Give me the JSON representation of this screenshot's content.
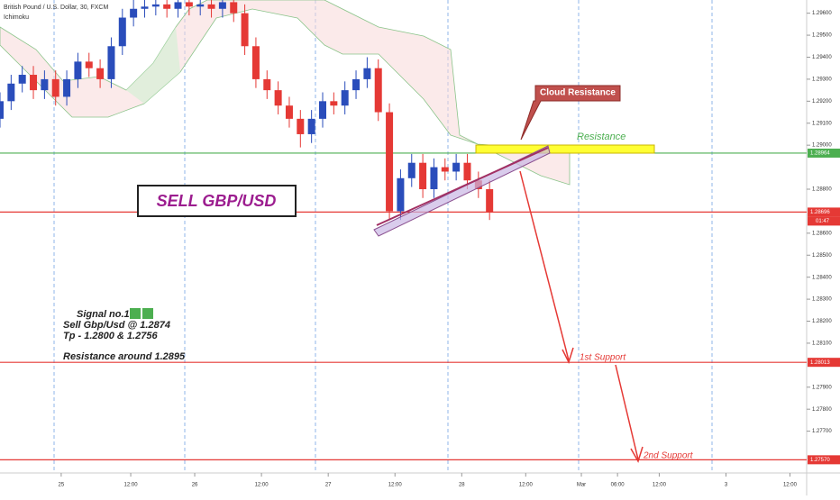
{
  "chart_data": {
    "type": "candlestick",
    "title": "British Pound / U.S. Dollar, 30, FXCM",
    "indicator": "Ichimoku",
    "up_color": "#2a4dbb",
    "down_color": "#e53935",
    "x": [
      0,
      4,
      8,
      12,
      16,
      20,
      24,
      28,
      32,
      36,
      40,
      44,
      48,
      52,
      56,
      60,
      64,
      68,
      72,
      76,
      80,
      84,
      88,
      92,
      96,
      100,
      104,
      108,
      112,
      116,
      120,
      124,
      128,
      132,
      136,
      140,
      144,
      148,
      152,
      156,
      160,
      164,
      168,
      172,
      176
    ],
    "open": [
      1.2912,
      1.292,
      1.2928,
      1.2932,
      1.2925,
      1.293,
      1.2922,
      1.293,
      1.2938,
      1.2935,
      1.293,
      1.2945,
      1.2958,
      1.2962,
      1.2963,
      1.2964,
      1.2962,
      1.2965,
      1.2963,
      1.2964,
      1.2962,
      1.2965,
      1.296,
      1.2945,
      1.293,
      1.2925,
      1.2918,
      1.2912,
      1.2905,
      1.2912,
      1.292,
      1.2918,
      1.2925,
      1.293,
      1.2935,
      1.2915,
      1.287,
      1.2885,
      1.2892,
      1.288,
      1.289,
      1.2888,
      1.2892,
      1.2884,
      1.288
    ],
    "high": [
      1.2924,
      1.2932,
      1.2936,
      1.2936,
      1.2934,
      1.2934,
      1.2934,
      1.2942,
      1.2942,
      1.2939,
      1.2949,
      1.2962,
      1.2966,
      1.2966,
      1.2966,
      1.2966,
      1.2966,
      1.2966,
      1.2966,
      1.2966,
      1.2966,
      1.2966,
      1.2964,
      1.2949,
      1.2934,
      1.2929,
      1.2922,
      1.2916,
      1.2916,
      1.2924,
      1.2924,
      1.2929,
      1.2934,
      1.294,
      1.2939,
      1.2919,
      1.2889,
      1.2896,
      1.2896,
      1.2894,
      1.2894,
      1.2896,
      1.2896,
      1.2888,
      1.2884
    ],
    "low": [
      1.2908,
      1.2916,
      1.2924,
      1.2921,
      1.2921,
      1.2918,
      1.2918,
      1.2926,
      1.2931,
      1.2926,
      1.2926,
      1.2941,
      1.2954,
      1.2958,
      1.2959,
      1.2958,
      1.2958,
      1.2959,
      1.2959,
      1.2958,
      1.2958,
      1.2956,
      1.2941,
      1.2926,
      1.2921,
      1.2914,
      1.2908,
      1.2899,
      1.2901,
      1.2908,
      1.2914,
      1.2914,
      1.2921,
      1.2926,
      1.2911,
      1.2866,
      1.2866,
      1.2881,
      1.2876,
      1.2876,
      1.2884,
      1.2884,
      1.288,
      1.2876,
      1.2866
    ],
    "close": [
      1.292,
      1.2928,
      1.2932,
      1.2925,
      1.293,
      1.2922,
      1.293,
      1.2938,
      1.2935,
      1.293,
      1.2945,
      1.2958,
      1.2962,
      1.2963,
      1.2964,
      1.2962,
      1.2965,
      1.2963,
      1.2964,
      1.2962,
      1.2965,
      1.296,
      1.2945,
      1.293,
      1.2925,
      1.2918,
      1.2912,
      1.2905,
      1.2912,
      1.292,
      1.2918,
      1.2925,
      1.293,
      1.2935,
      1.2915,
      1.287,
      1.2885,
      1.2892,
      1.288,
      1.289,
      1.2888,
      1.2892,
      1.2884,
      1.288,
      1.28696
    ],
    "xlim": [
      0,
      290
    ],
    "xticks": [
      {
        "value": 22,
        "label": "25"
      },
      {
        "value": 47,
        "label": "12:00"
      },
      {
        "value": 70,
        "label": "26"
      },
      {
        "value": 94,
        "label": "12:00"
      },
      {
        "value": 118,
        "label": "27"
      },
      {
        "value": 142,
        "label": "12:00"
      },
      {
        "value": 166,
        "label": "28"
      },
      {
        "value": 189,
        "label": "12:00"
      },
      {
        "value": 209,
        "label": "Mar"
      },
      {
        "value": 222,
        "label": "06:00"
      },
      {
        "value": 237,
        "label": "12:00"
      },
      {
        "value": 261,
        "label": "3"
      },
      {
        "value": 284,
        "label": "12:00"
      }
    ],
    "ylim": [
      1.2751,
      1.2966
    ],
    "yticks": [
      {
        "value": 1.296,
        "label": "1.29600"
      },
      {
        "value": 1.295,
        "label": "1.29500"
      },
      {
        "value": 1.294,
        "label": "1.29400"
      },
      {
        "value": 1.293,
        "label": "1.29300"
      },
      {
        "value": 1.292,
        "label": "1.29200"
      },
      {
        "value": 1.291,
        "label": "1.29100"
      },
      {
        "value": 1.29,
        "label": "1.29000"
      },
      {
        "value": 1.288,
        "label": "1.28800"
      },
      {
        "value": 1.286,
        "label": "1.28600"
      },
      {
        "value": 1.285,
        "label": "1.28500"
      },
      {
        "value": 1.284,
        "label": "1.28400"
      },
      {
        "value": 1.283,
        "label": "1.28300"
      },
      {
        "value": 1.282,
        "label": "1.28200"
      },
      {
        "value": 1.281,
        "label": "1.28100"
      },
      {
        "value": 1.279,
        "label": "1.27900"
      },
      {
        "value": 1.278,
        "label": "1.27800"
      },
      {
        "value": 1.277,
        "label": "1.27700"
      }
    ],
    "levels": [
      {
        "value": 1.28964,
        "color": "#4caf50"
      },
      {
        "value": 1.28696,
        "color": "#e53935"
      },
      {
        "value": 1.28013,
        "color": "#e53935"
      },
      {
        "value": 1.2757,
        "label": "1.27570",
        "color": "#e53935"
      }
    ],
    "countdown": "01:47",
    "annotations": {
      "sell": "SELL GBP/USD",
      "signal": "Signal no.1",
      "entry": "Sell Gbp/Usd @ 1.2874",
      "tp": "Tp - 1.2800 & 1.2756",
      "resistance_note": "Resistance around 1.2895",
      "cloud": "Cloud Resistance",
      "resistance": "Resistance",
      "support1": "1st Support",
      "support2": "2nd Support"
    }
  }
}
